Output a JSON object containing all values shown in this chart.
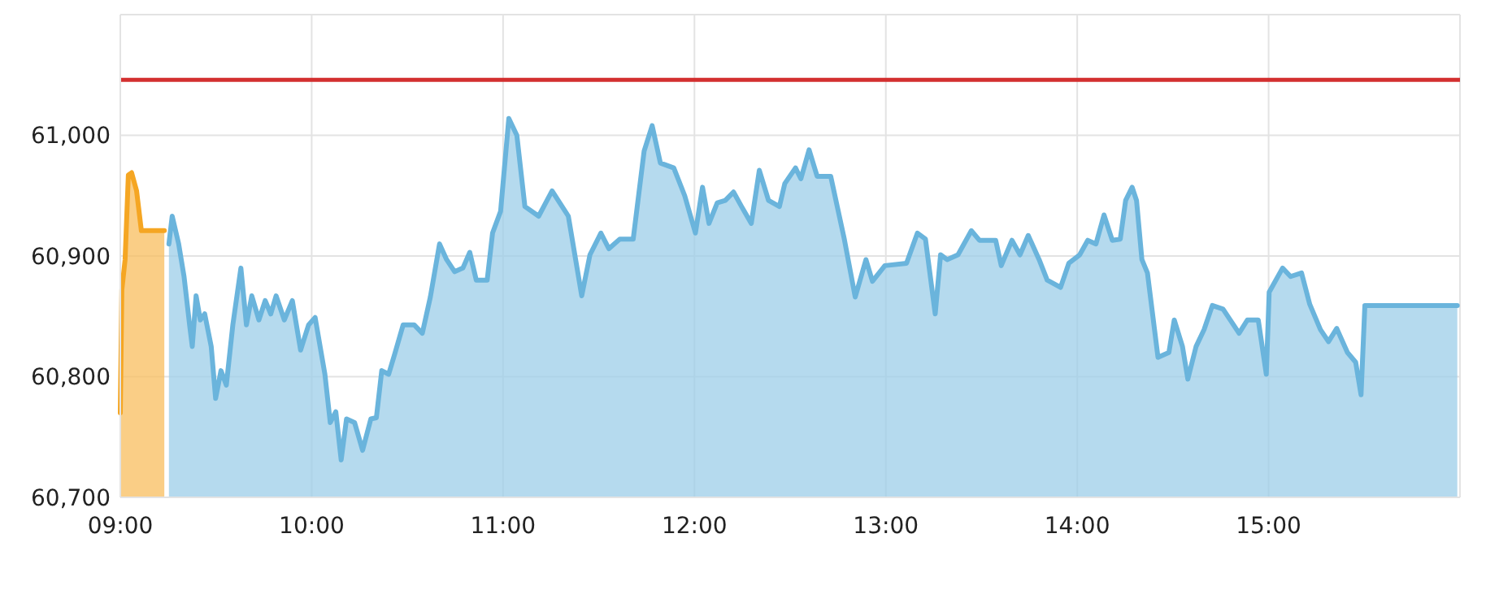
{
  "chart_data": {
    "type": "area",
    "series": [
      {
        "color": "#f5a623",
        "x": [
          9.0,
          9.008,
          9.025,
          9.042,
          9.059,
          9.085,
          9.11,
          9.23
        ],
        "values": [
          60770,
          60872,
          60897,
          60967,
          60969,
          60954,
          60921,
          60921
        ]
      },
      {
        "color": "#6ab4dc",
        "x": [
          9.254,
          9.271,
          9.305,
          9.333,
          9.362,
          9.376,
          9.396,
          9.418,
          9.441,
          9.475,
          9.498,
          9.526,
          9.554,
          9.588,
          9.63,
          9.659,
          9.687,
          9.724,
          9.757,
          9.786,
          9.814,
          9.857,
          9.899,
          9.942,
          9.984,
          10.018,
          10.069,
          10.097,
          10.126,
          10.154,
          10.182,
          10.224,
          10.266,
          10.309,
          10.338,
          10.366,
          10.402,
          10.436,
          10.478,
          10.535,
          10.578,
          10.62,
          10.668,
          10.705,
          10.747,
          10.79,
          10.826,
          10.86,
          10.917,
          10.945,
          10.987,
          11.03,
          11.072,
          11.114,
          11.186,
          11.256,
          11.341,
          11.411,
          11.454,
          11.511,
          11.553,
          11.61,
          11.68,
          11.737,
          11.779,
          11.822,
          11.892,
          11.949,
          12.005,
          12.042,
          12.076,
          12.119,
          12.161,
          12.204,
          12.246,
          12.297,
          12.339,
          12.387,
          12.444,
          12.472,
          12.528,
          12.556,
          12.599,
          12.641,
          12.712,
          12.783,
          12.84,
          12.896,
          12.93,
          12.995,
          13.108,
          13.165,
          13.207,
          13.258,
          13.286,
          13.32,
          13.377,
          13.447,
          13.489,
          13.574,
          13.603,
          13.659,
          13.701,
          13.744,
          13.801,
          13.843,
          13.913,
          13.956,
          14.013,
          14.055,
          14.098,
          14.14,
          14.183,
          14.225,
          14.253,
          14.287,
          14.31,
          14.338,
          14.367,
          14.422,
          14.479,
          14.507,
          14.55,
          14.578,
          14.621,
          14.663,
          14.706,
          14.762,
          14.846,
          14.889,
          14.946,
          14.988,
          15.003,
          15.073,
          15.115,
          15.172,
          15.215,
          15.271,
          15.313,
          15.356,
          15.412,
          15.455,
          15.483,
          15.503,
          15.986
        ],
        "values": [
          60910,
          60933,
          60910,
          60883,
          60843,
          60825,
          60867,
          60847,
          60852,
          60825,
          60782,
          60805,
          60793,
          60843,
          60890,
          60843,
          60867,
          60847,
          60863,
          60852,
          60867,
          60847,
          60863,
          60822,
          60843,
          60849,
          60802,
          60762,
          60771,
          60731,
          60765,
          60762,
          60739,
          60765,
          60766,
          60805,
          60802,
          60820,
          60843,
          60843,
          60836,
          60866,
          60910,
          60897,
          60887,
          60890,
          60903,
          60880,
          60880,
          60919,
          60937,
          61014,
          61000,
          60941,
          60933,
          60954,
          60933,
          60867,
          60901,
          60919,
          60906,
          60914,
          60914,
          60987,
          61008,
          60977,
          60973,
          60950,
          60919,
          60957,
          60927,
          60944,
          60946,
          60953,
          60941,
          60927,
          60971,
          60946,
          60941,
          60960,
          60973,
          60964,
          60988,
          60966,
          60966,
          60914,
          60866,
          60897,
          60879,
          60892,
          60894,
          60919,
          60914,
          60852,
          60901,
          60897,
          60901,
          60921,
          60913,
          60913,
          60892,
          60913,
          60901,
          60917,
          60897,
          60880,
          60874,
          60894,
          60901,
          60913,
          60910,
          60934,
          60913,
          60914,
          60946,
          60957,
          60946,
          60897,
          60886,
          60816,
          60820,
          60847,
          60825,
          60798,
          60825,
          60839,
          60859,
          60856,
          60836,
          60847,
          60847,
          60802,
          60870,
          60890,
          60883,
          60886,
          60860,
          60839,
          60829,
          60840,
          60820,
          60812,
          60785,
          60859,
          60859
        ]
      }
    ],
    "xlim": [
      9,
      16
    ],
    "xticks": [
      {
        "value": 9,
        "label": "09:00"
      },
      {
        "value": 10,
        "label": "10:00"
      },
      {
        "value": 11,
        "label": "11:00"
      },
      {
        "value": 12,
        "label": "12:00"
      },
      {
        "value": 13,
        "label": "13:00"
      },
      {
        "value": 14,
        "label": "14:00"
      },
      {
        "value": 15,
        "label": "15:00"
      },
      {
        "value": 16,
        "label": null
      }
    ],
    "ylim": [
      60700,
      61100
    ],
    "yticks": [
      {
        "value": 60700,
        "label": "60,700"
      },
      {
        "value": 60800,
        "label": "60,800"
      },
      {
        "value": 60900,
        "label": "60,900"
      },
      {
        "value": 61000,
        "label": "61,000"
      },
      {
        "value": 61100,
        "label": null
      }
    ],
    "ref_lines": [
      {
        "axis": "y",
        "value": 61046,
        "color": "#d32f2f"
      }
    ],
    "grid": true
  }
}
